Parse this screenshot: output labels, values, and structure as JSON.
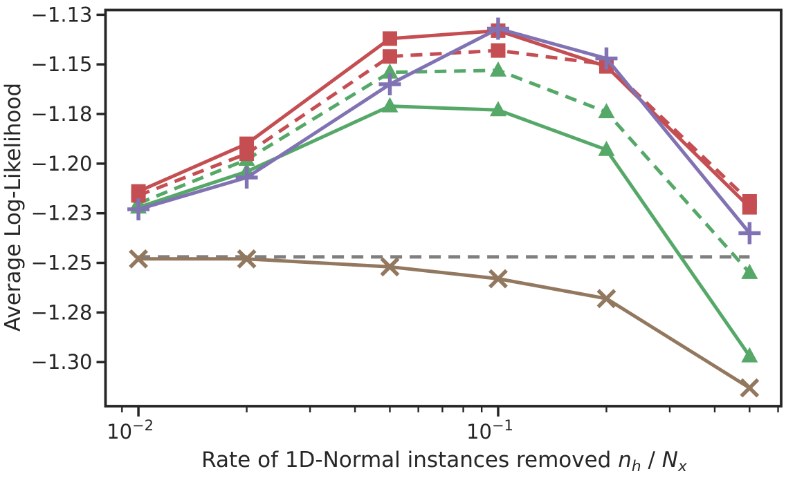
{
  "chart_data": {
    "type": "line",
    "title": "",
    "ylabel": "Average Log-Likelihood",
    "xlabel": "Rate of 1D-Normal instances removed n_h / N_x",
    "xlabel_parts": {
      "main": "Rate of 1D-Normal instances removed ",
      "var1": "n",
      "sub1": "h",
      "slash": " / ",
      "var2": "N",
      "sub2": "x"
    },
    "x_scale": "log",
    "xlim": [
      0.0081,
      0.612
    ],
    "ylim": [
      -1.3222,
      -1.1226
    ],
    "grid": false,
    "legend": "none",
    "x": [
      0.01,
      0.02,
      0.05,
      0.1,
      0.2,
      0.5
    ],
    "y_ticks": [
      {
        "label": "−1.13",
        "value": -1.125
      },
      {
        "label": "−1.15",
        "value": -1.15
      },
      {
        "label": "−1.18",
        "value": -1.175
      },
      {
        "label": "−1.20",
        "value": -1.2
      },
      {
        "label": "−1.23",
        "value": -1.225
      },
      {
        "label": "−1.25",
        "value": -1.25
      },
      {
        "label": "−1.28",
        "value": -1.275
      },
      {
        "label": "−1.30",
        "value": -1.3
      }
    ],
    "x_major_ticks": [
      {
        "base": "10",
        "exp": "−2",
        "value": 0.01
      },
      {
        "base": "10",
        "exp": "−1",
        "value": 0.1
      }
    ],
    "x_minor_ticks": [
      0.009,
      0.02,
      0.03,
      0.04,
      0.05,
      0.06,
      0.07,
      0.08,
      0.09,
      0.2,
      0.3,
      0.4,
      0.5,
      0.6
    ],
    "colors": {
      "red": "#c44e52",
      "green": "#55a868",
      "purple": "#8172b3",
      "brown": "#937860",
      "gray": "#7f7f7f",
      "axis": "#262626"
    },
    "series": [
      {
        "name": "gray-baseline-dashed",
        "color": "#7f7f7f",
        "dash": "dashed",
        "marker": "none",
        "x": [
          0.01,
          0.5
        ],
        "values": [
          -1.247,
          -1.247
        ]
      },
      {
        "name": "brown-x-solid",
        "color": "#937860",
        "dash": "solid",
        "marker": "x",
        "values": [
          -1.248,
          -1.248,
          -1.252,
          -1.258,
          -1.268,
          -1.313
        ]
      },
      {
        "name": "green-triangle-solid",
        "color": "#55a868",
        "dash": "solid",
        "marker": "triangle",
        "values": [
          -1.222,
          -1.204,
          -1.171,
          -1.173,
          -1.193,
          -1.297
        ]
      },
      {
        "name": "green-triangle-dashed",
        "color": "#55a868",
        "dash": "dashed",
        "marker": "triangle",
        "values": [
          -1.22,
          -1.198,
          -1.154,
          -1.153,
          -1.174,
          -1.255
        ]
      },
      {
        "name": "red-square-dashed",
        "color": "#c44e52",
        "dash": "dashed",
        "marker": "square",
        "values": [
          -1.216,
          -1.195,
          -1.146,
          -1.143,
          -1.15,
          -1.219
        ]
      },
      {
        "name": "red-square-solid",
        "color": "#c44e52",
        "dash": "solid",
        "marker": "square",
        "values": [
          -1.214,
          -1.19,
          -1.137,
          -1.133,
          -1.151,
          -1.222
        ]
      },
      {
        "name": "purple-plus-solid",
        "color": "#8172b3",
        "dash": "solid",
        "marker": "plus",
        "values": [
          -1.223,
          -1.207,
          -1.16,
          -1.132,
          -1.147,
          -1.235
        ]
      }
    ]
  }
}
